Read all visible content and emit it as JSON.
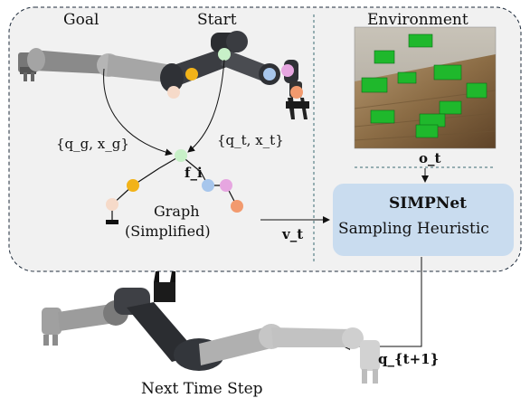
{
  "labels": {
    "goal": "Goal",
    "start": "Start",
    "environment": "Environment",
    "goal_input": "{q_g, x_g}",
    "start_input": "{q_t, x_t}",
    "feature": "f_i",
    "graph_line1": "Graph",
    "graph_line2": "(Simplified)",
    "v_t": "v_t",
    "o_t": "o_t",
    "simpnet": "SIMPNet",
    "heuristic": "Sampling Heuristic",
    "q_next": "q_{t+1}",
    "next_step": "Next Time Step"
  },
  "colors": {
    "panel_bg": "#f1f1f1",
    "simpnet_box": "#c9dcef",
    "node_center": "#c8f0c8",
    "node_yellow": "#f2b319",
    "node_peach": "#f6dac9",
    "node_blue": "#a7c6ec",
    "node_pink": "#e6a6e0",
    "node_orange": "#f29a6e",
    "robot_dark": "#2f3136",
    "robot_grey": "#9c9c9c",
    "block_green": "#1fb82c",
    "table_wood": "#8b6c45"
  }
}
